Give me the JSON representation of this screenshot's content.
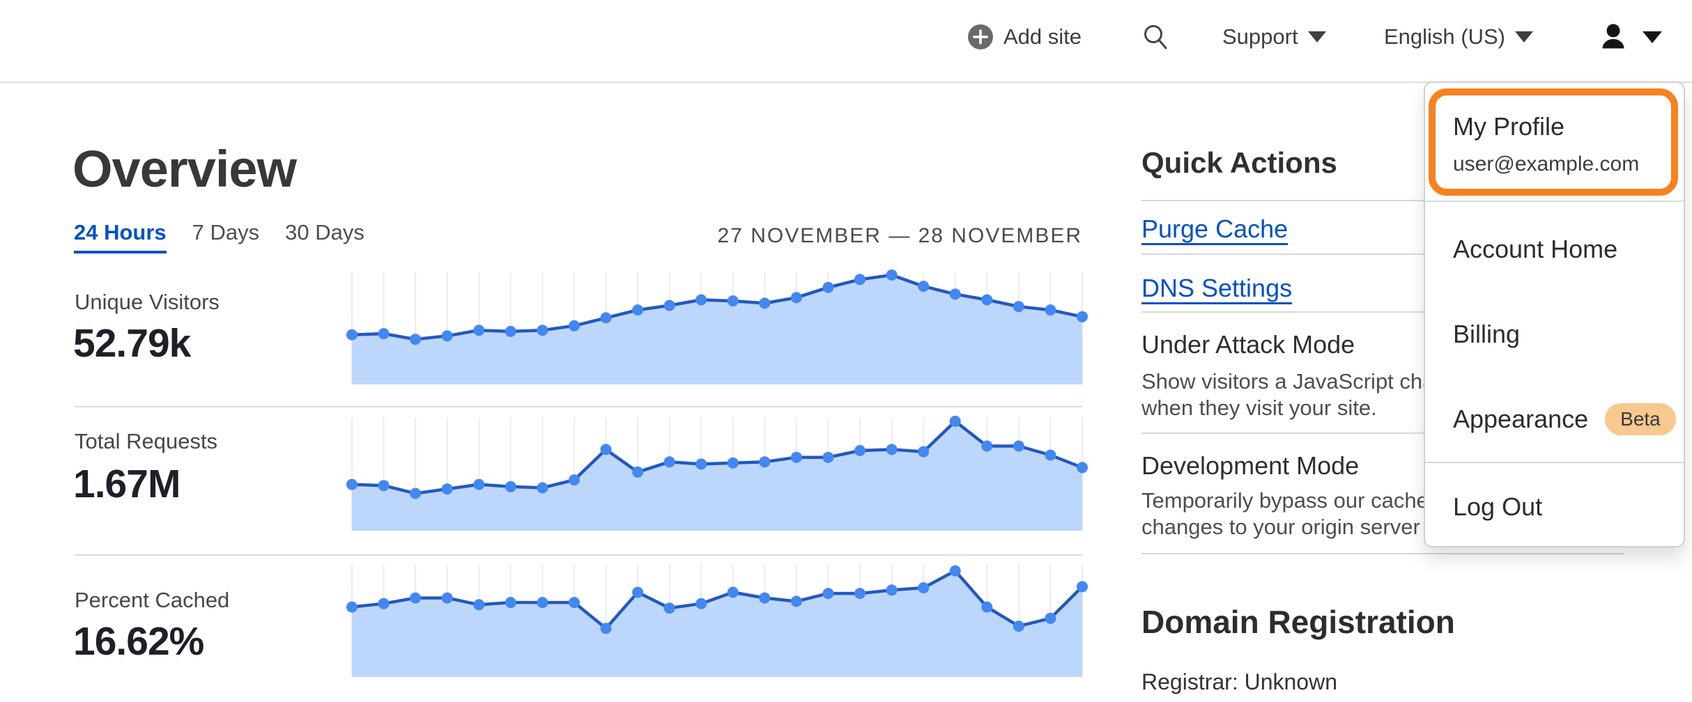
{
  "colors": {
    "accent_blue": "#0051c3",
    "highlight_orange": "#f6821f",
    "beta_badge_bg": "#f8c891",
    "chart_line": "#2458bd",
    "chart_dot": "#4387f2",
    "chart_fill": "#bdd7fc",
    "chart_grid": "#ececec"
  },
  "header": {
    "add_site_label": "Add site",
    "support_label": "Support",
    "language_label": "English (US)",
    "icons": [
      "plus-circle-icon",
      "search-icon",
      "caret-down-icon",
      "user-icon"
    ]
  },
  "account_menu": {
    "profile_label": "My Profile",
    "profile_email": "user@example.com",
    "items": [
      {
        "label": "Account Home"
      },
      {
        "label": "Billing"
      },
      {
        "label": "Appearance",
        "badge": "Beta"
      },
      {
        "label": "Log Out"
      }
    ]
  },
  "overview": {
    "title": "Overview",
    "tabs": [
      {
        "label": "24 Hours",
        "active": true
      },
      {
        "label": "7 Days",
        "active": false
      },
      {
        "label": "30 Days",
        "active": false
      }
    ],
    "date_range": "27 NOVEMBER — 28 NOVEMBER",
    "metrics": [
      {
        "label": "Unique Visitors",
        "value": "52.79k"
      },
      {
        "label": "Total Requests",
        "value": "1.67M"
      },
      {
        "label": "Percent Cached",
        "value": "16.62%"
      }
    ]
  },
  "quick_actions": {
    "title": "Quick Actions",
    "links": [
      {
        "label": "Purge Cache"
      },
      {
        "label": "DNS Settings"
      }
    ],
    "toggles": [
      {
        "title": "Under Attack Mode",
        "desc_lines": [
          "Show visitors a JavaScript challenge",
          "when they visit your site."
        ]
      },
      {
        "title": "Development Mode",
        "desc_lines": [
          "Temporarily bypass our cache. See",
          "changes to your origin server in real time."
        ]
      }
    ]
  },
  "domain_registration": {
    "title": "Domain Registration",
    "registrar_line": "Registrar: Unknown"
  },
  "chart_data": [
    {
      "type": "area",
      "title": "Unique Visitors (24 Hours)",
      "total_shown": "52.79k",
      "x": "24 hourly points, 27 November — 28 November (axis unlabeled)",
      "grid": "vertical-only",
      "ylim_normalized": [
        0,
        1
      ],
      "values_normalized": [
        0.44,
        0.45,
        0.4,
        0.43,
        0.48,
        0.47,
        0.48,
        0.52,
        0.59,
        0.66,
        0.7,
        0.75,
        0.74,
        0.72,
        0.77,
        0.86,
        0.93,
        0.97,
        0.87,
        0.8,
        0.75,
        0.69,
        0.66,
        0.6
      ]
    },
    {
      "type": "area",
      "title": "Total Requests (24 Hours)",
      "total_shown": "1.67M",
      "x": "24 hourly points, 27 November — 28 November (axis unlabeled)",
      "grid": "vertical-only",
      "ylim_normalized": [
        0,
        1
      ],
      "values_normalized": [
        0.41,
        0.4,
        0.33,
        0.37,
        0.41,
        0.39,
        0.38,
        0.45,
        0.72,
        0.52,
        0.61,
        0.59,
        0.6,
        0.61,
        0.65,
        0.65,
        0.71,
        0.72,
        0.7,
        0.97,
        0.75,
        0.75,
        0.67,
        0.56
      ]
    },
    {
      "type": "area",
      "title": "Percent Cached (24 Hours)",
      "total_shown": "16.62%",
      "x": "24 hourly points, 27 November — 28 November (axis unlabeled)",
      "grid": "vertical-only",
      "ylim_normalized": [
        0,
        1
      ],
      "values_normalized": [
        0.62,
        0.65,
        0.7,
        0.7,
        0.64,
        0.66,
        0.66,
        0.66,
        0.43,
        0.75,
        0.61,
        0.65,
        0.75,
        0.7,
        0.67,
        0.74,
        0.74,
        0.77,
        0.79,
        0.94,
        0.62,
        0.45,
        0.52,
        0.8
      ]
    }
  ]
}
